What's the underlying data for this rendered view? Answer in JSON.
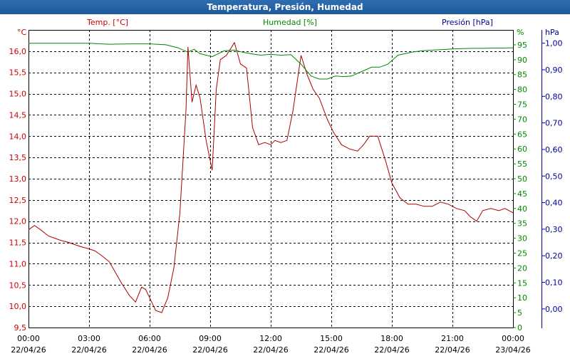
{
  "title": "Temperatura, Presión, Humedad",
  "chart_data": {
    "type": "line",
    "title": "Temperatura, Presión, Humedad",
    "grid": true,
    "x_ticks": [
      {
        "time": "00:00",
        "date": "22/04/26"
      },
      {
        "time": "03:00",
        "date": "22/04/26"
      },
      {
        "time": "06:00",
        "date": "22/04/26"
      },
      {
        "time": "09:00",
        "date": "22/04/26"
      },
      {
        "time": "12:00",
        "date": "22/04/26"
      },
      {
        "time": "15:00",
        "date": "22/04/26"
      },
      {
        "time": "18:00",
        "date": "22/04/26"
      },
      {
        "time": "21:00",
        "date": "22/04/26"
      },
      {
        "time": "00:00",
        "date": "23/04/26"
      }
    ],
    "axes": {
      "temp": {
        "label": "Temp. [°C]",
        "unit": "°C",
        "color": "#cc0000",
        "range": [
          9.5,
          16.5
        ],
        "ticks": [
          "9,5",
          "10,0",
          "10,5",
          "11,0",
          "11,5",
          "12,0",
          "12,5",
          "13,0",
          "13,5",
          "14,0",
          "14,5",
          "15,0",
          "15,5",
          "16,0"
        ]
      },
      "hum": {
        "label": "Humedad [%]",
        "unit": "%",
        "color": "#008800",
        "range": [
          0,
          100
        ],
        "ticks": [
          "0",
          "5",
          "10",
          "15",
          "20",
          "25",
          "30",
          "35",
          "40",
          "45",
          "50",
          "55",
          "60",
          "65",
          "70",
          "75",
          "80",
          "85",
          "90",
          "95"
        ]
      },
      "pres": {
        "label": "Presión [hPa]",
        "unit": "hPa",
        "color": "#000099",
        "range": [
          -0.07,
          1.05
        ],
        "ticks": [
          "0,00",
          "0,10",
          "0,20",
          "0,30",
          "0,40",
          "0,50",
          "0,60",
          "0,70",
          "0,80",
          "0,90",
          "1,00"
        ]
      }
    },
    "series": [
      {
        "name": "Temp. [°C]",
        "axis": "temp",
        "color": "#aa0000",
        "x_hours": [
          0,
          0.3,
          0.6,
          1,
          1.3,
          1.6,
          2,
          2.3,
          2.6,
          3,
          3.3,
          3.6,
          4,
          4.3,
          4.6,
          5,
          5.3,
          5.6,
          5.8,
          6,
          6.3,
          6.6,
          6.9,
          7.2,
          7.5,
          7.8,
          7.9,
          8.1,
          8.3,
          8.5,
          8.8,
          9.1,
          9.3,
          9.5,
          9.8,
          10.2,
          10.5,
          10.8,
          11.1,
          11.4,
          11.7,
          12,
          12.2,
          12.5,
          12.8,
          13.1,
          13.5,
          13.8,
          14.1,
          14.4,
          14.8,
          15.1,
          15.5,
          15.9,
          16.3,
          16.6,
          16.9,
          17.3,
          17.7,
          18,
          18.4,
          18.8,
          19.2,
          19.6,
          20,
          20.4,
          20.8,
          21.2,
          21.6,
          21.9,
          22.2,
          22.5,
          22.9,
          23.3,
          23.6,
          24
        ],
        "values": [
          11.8,
          11.9,
          11.8,
          11.65,
          11.6,
          11.55,
          11.5,
          11.45,
          11.4,
          11.35,
          11.3,
          11.2,
          11.05,
          10.8,
          10.55,
          10.25,
          10.1,
          10.45,
          10.4,
          10.2,
          9.9,
          9.85,
          10.2,
          10.9,
          12.2,
          14.6,
          16.1,
          14.8,
          15.2,
          14.9,
          13.9,
          13.2,
          15.1,
          15.8,
          15.9,
          16.2,
          15.7,
          15.6,
          14.2,
          13.8,
          13.85,
          13.8,
          13.9,
          13.85,
          13.9,
          14.6,
          15.9,
          15.45,
          15.1,
          14.9,
          14.4,
          14.1,
          13.8,
          13.7,
          13.65,
          13.8,
          14.0,
          14.0,
          13.4,
          12.9,
          12.55,
          12.4,
          12.4,
          12.35,
          12.35,
          12.45,
          12.4,
          12.3,
          12.25,
          12.1,
          12.0,
          12.25,
          12.3,
          12.25,
          12.3,
          12.2
        ]
      },
      {
        "name": "Humedad [%]",
        "axis": "hum",
        "color": "#008800",
        "x_hours": [
          0,
          1,
          2,
          3,
          4,
          5,
          6,
          6.8,
          7.4,
          7.9,
          8.2,
          8.5,
          8.8,
          9.1,
          9.4,
          9.7,
          10.2,
          10.6,
          11,
          11.5,
          12,
          12.5,
          13,
          13.5,
          14,
          14.4,
          14.8,
          15.2,
          15.6,
          16,
          16.5,
          17,
          17.4,
          17.8,
          18.3,
          19,
          19.5,
          20,
          20.5,
          21,
          21.5,
          22,
          22.5,
          23,
          23.5,
          24
        ],
        "values": [
          95.5,
          95.5,
          95.5,
          95.5,
          95.2,
          95.3,
          95.3,
          95.0,
          94,
          92.5,
          93.5,
          92.0,
          91.5,
          91.0,
          92,
          93,
          93.2,
          92.5,
          92,
          91.5,
          91.8,
          91.5,
          91.7,
          88.5,
          84.5,
          83.5,
          83.5,
          84.5,
          84.3,
          84.5,
          86.0,
          87.5,
          87.5,
          88.5,
          91.5,
          92.5,
          93.0,
          93.2,
          93.4,
          93.6,
          93.7,
          93.8,
          93.8,
          93.9,
          93.9,
          94.0
        ]
      }
    ]
  }
}
